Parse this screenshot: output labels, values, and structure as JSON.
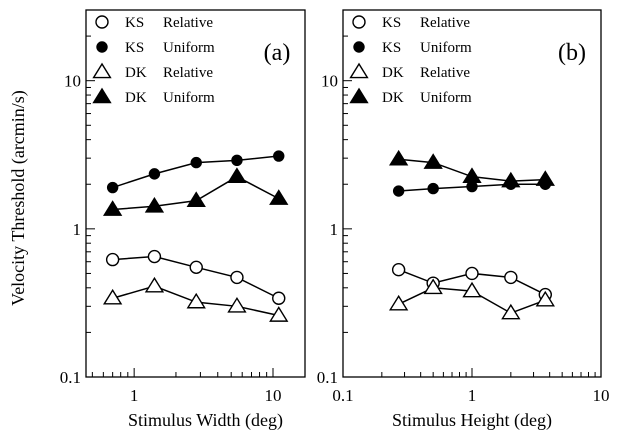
{
  "figure": {
    "ylabel": "Velocity Threshold (arcmin/s)",
    "y_ticks": [
      "0.1",
      "1",
      "10"
    ]
  },
  "chart_data": [
    {
      "type": "line",
      "panel": "(a)",
      "xscale": "log",
      "yscale": "log",
      "xlabel": "Stimulus Width (deg)",
      "ylabel": "Velocity Threshold (arcmin/s)",
      "xlim": [
        0.45,
        17
      ],
      "ylim": [
        0.1,
        30
      ],
      "x_ticks": [
        "1",
        "10"
      ],
      "y_ticks": [
        "0.1",
        "1",
        "10"
      ],
      "legend_position": "top-left",
      "series": [
        {
          "subject": "KS",
          "condition": "Relative",
          "marker": "circle-open",
          "x": [
            0.7,
            1.4,
            2.8,
            5.5,
            11
          ],
          "values": [
            0.62,
            0.65,
            0.55,
            0.47,
            0.34
          ]
        },
        {
          "subject": "KS",
          "condition": "Uniform",
          "marker": "circle-filled",
          "x": [
            0.7,
            1.4,
            2.8,
            5.5,
            11
          ],
          "values": [
            1.9,
            2.35,
            2.8,
            2.9,
            3.1
          ]
        },
        {
          "subject": "DK",
          "condition": "Relative",
          "marker": "triangle-open",
          "x": [
            0.7,
            1.4,
            2.8,
            5.5,
            11
          ],
          "values": [
            0.34,
            0.41,
            0.32,
            0.3,
            0.26
          ]
        },
        {
          "subject": "DK",
          "condition": "Uniform",
          "marker": "triangle-filled",
          "x": [
            0.7,
            1.4,
            2.8,
            5.5,
            11
          ],
          "values": [
            1.35,
            1.42,
            1.55,
            2.25,
            1.6
          ]
        }
      ]
    },
    {
      "type": "line",
      "panel": "(b)",
      "xscale": "log",
      "yscale": "log",
      "xlabel": "Stimulus Height (deg)",
      "ylabel": "",
      "xlim": [
        0.1,
        10
      ],
      "ylim": [
        0.1,
        30
      ],
      "x_ticks": [
        "0.1",
        "1",
        "10"
      ],
      "y_ticks": [
        "0.1",
        "1",
        "10"
      ],
      "legend_position": "top-left",
      "series": [
        {
          "subject": "KS",
          "condition": "Relative",
          "marker": "circle-open",
          "x": [
            0.27,
            0.5,
            1,
            2,
            3.7
          ],
          "values": [
            0.53,
            0.43,
            0.5,
            0.47,
            0.36
          ]
        },
        {
          "subject": "KS",
          "condition": "Uniform",
          "marker": "circle-filled",
          "x": [
            0.27,
            0.5,
            1,
            2,
            3.7
          ],
          "values": [
            1.8,
            1.87,
            1.93,
            2.0,
            2.0
          ]
        },
        {
          "subject": "DK",
          "condition": "Relative",
          "marker": "triangle-open",
          "x": [
            0.27,
            0.5,
            1,
            2,
            3.7
          ],
          "values": [
            0.31,
            0.4,
            0.38,
            0.27,
            0.33
          ]
        },
        {
          "subject": "DK",
          "condition": "Uniform",
          "marker": "triangle-filled",
          "x": [
            0.27,
            0.5,
            1,
            2,
            3.7
          ],
          "values": [
            2.95,
            2.8,
            2.25,
            2.1,
            2.15
          ]
        }
      ]
    }
  ]
}
